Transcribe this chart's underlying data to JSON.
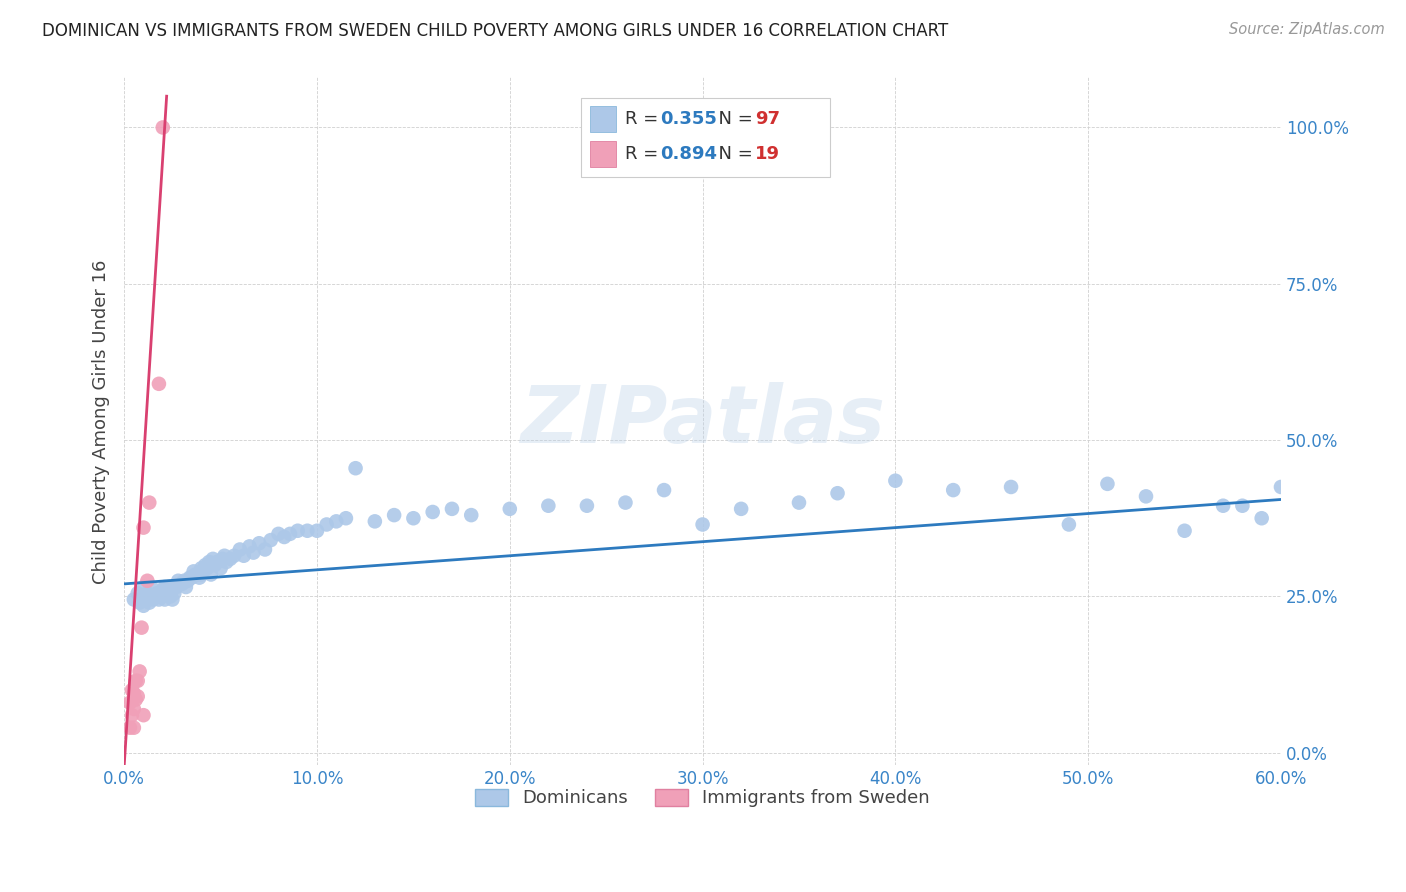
{
  "title": "DOMINICAN VS IMMIGRANTS FROM SWEDEN CHILD POVERTY AMONG GIRLS UNDER 16 CORRELATION CHART",
  "source": "Source: ZipAtlas.com",
  "ylabel": "Child Poverty Among Girls Under 16",
  "xlim": [
    0.0,
    0.6
  ],
  "ylim": [
    -0.02,
    1.08
  ],
  "ytick_positions": [
    0.0,
    0.25,
    0.5,
    0.75,
    1.0
  ],
  "ytick_labels": [
    "0.0%",
    "25.0%",
    "50.0%",
    "75.0%",
    "100.0%"
  ],
  "xtick_positions": [
    0.0,
    0.1,
    0.2,
    0.3,
    0.4,
    0.5,
    0.6
  ],
  "xtick_labels": [
    "0.0%",
    "10.0%",
    "20.0%",
    "30.0%",
    "40.0%",
    "50.0%",
    "60.0%"
  ],
  "blue_R": "0.355",
  "blue_N": "97",
  "pink_R": "0.894",
  "pink_N": "19",
  "blue_color": "#adc8e8",
  "pink_color": "#f0a0b8",
  "blue_line_color": "#2d7abf",
  "pink_line_color": "#d94070",
  "watermark_text": "ZIPatlas",
  "legend_blue_label": "Dominicans",
  "legend_pink_label": "Immigrants from Sweden",
  "blue_scatter_x": [
    0.005,
    0.007,
    0.008,
    0.01,
    0.01,
    0.01,
    0.012,
    0.012,
    0.013,
    0.014,
    0.015,
    0.016,
    0.016,
    0.017,
    0.018,
    0.019,
    0.02,
    0.02,
    0.021,
    0.021,
    0.022,
    0.023,
    0.024,
    0.025,
    0.025,
    0.026,
    0.027,
    0.028,
    0.03,
    0.031,
    0.032,
    0.033,
    0.034,
    0.035,
    0.036,
    0.037,
    0.038,
    0.039,
    0.04,
    0.04,
    0.041,
    0.042,
    0.043,
    0.044,
    0.045,
    0.046,
    0.047,
    0.048,
    0.05,
    0.051,
    0.052,
    0.053,
    0.055,
    0.057,
    0.06,
    0.062,
    0.065,
    0.067,
    0.07,
    0.073,
    0.076,
    0.08,
    0.083,
    0.086,
    0.09,
    0.095,
    0.1,
    0.105,
    0.11,
    0.115,
    0.12,
    0.13,
    0.14,
    0.15,
    0.16,
    0.17,
    0.18,
    0.2,
    0.22,
    0.24,
    0.26,
    0.28,
    0.3,
    0.32,
    0.35,
    0.37,
    0.4,
    0.43,
    0.46,
    0.49,
    0.51,
    0.53,
    0.55,
    0.57,
    0.59,
    0.6,
    0.58
  ],
  "blue_scatter_y": [
    0.245,
    0.255,
    0.24,
    0.235,
    0.25,
    0.265,
    0.245,
    0.255,
    0.24,
    0.25,
    0.245,
    0.25,
    0.26,
    0.255,
    0.245,
    0.255,
    0.25,
    0.26,
    0.265,
    0.245,
    0.255,
    0.265,
    0.25,
    0.265,
    0.245,
    0.255,
    0.265,
    0.275,
    0.27,
    0.275,
    0.265,
    0.275,
    0.28,
    0.28,
    0.29,
    0.285,
    0.285,
    0.28,
    0.295,
    0.285,
    0.29,
    0.3,
    0.295,
    0.305,
    0.285,
    0.31,
    0.3,
    0.305,
    0.295,
    0.31,
    0.315,
    0.305,
    0.31,
    0.315,
    0.325,
    0.315,
    0.33,
    0.32,
    0.335,
    0.325,
    0.34,
    0.35,
    0.345,
    0.35,
    0.355,
    0.355,
    0.355,
    0.365,
    0.37,
    0.375,
    0.455,
    0.37,
    0.38,
    0.375,
    0.385,
    0.39,
    0.38,
    0.39,
    0.395,
    0.395,
    0.4,
    0.42,
    0.365,
    0.39,
    0.4,
    0.415,
    0.435,
    0.42,
    0.425,
    0.365,
    0.43,
    0.41,
    0.355,
    0.395,
    0.375,
    0.425,
    0.395
  ],
  "pink_scatter_x": [
    0.003,
    0.003,
    0.004,
    0.004,
    0.005,
    0.005,
    0.005,
    0.006,
    0.006,
    0.007,
    0.007,
    0.008,
    0.009,
    0.01,
    0.01,
    0.012,
    0.013,
    0.018,
    0.02
  ],
  "pink_scatter_y": [
    0.04,
    0.08,
    0.06,
    0.1,
    0.04,
    0.07,
    0.095,
    0.085,
    0.115,
    0.09,
    0.115,
    0.13,
    0.2,
    0.06,
    0.36,
    0.275,
    0.4,
    0.59,
    1.0
  ],
  "blue_line_x0": 0.0,
  "blue_line_x1": 0.6,
  "blue_line_y0": 0.27,
  "blue_line_y1": 0.405,
  "pink_line_x0": 0.0,
  "pink_line_x1": 0.022,
  "pink_line_y0": -0.02,
  "pink_line_y1": 1.05
}
